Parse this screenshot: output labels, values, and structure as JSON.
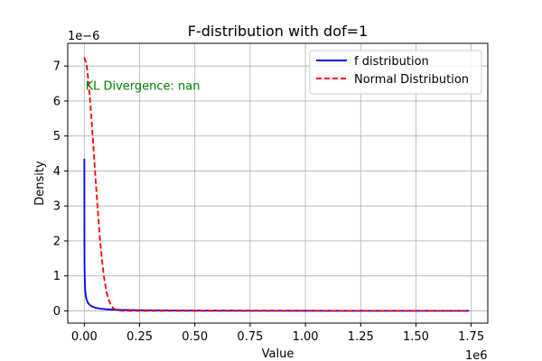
{
  "chart_data": {
    "type": "line",
    "title": "F-distribution with dof=1",
    "xlabel": "Value",
    "ylabel": "Density",
    "x_offset_label": "1e6",
    "y_offset_label": "1e−6",
    "xlim": [
      -0.075,
      1.825
    ],
    "ylim": [
      -0.35,
      7.65
    ],
    "x_ticks": [
      0.0,
      0.25,
      0.5,
      0.75,
      1.0,
      1.25,
      1.5,
      1.75
    ],
    "x_tick_labels": [
      "0.00",
      "0.25",
      "0.50",
      "0.75",
      "1.00",
      "1.25",
      "1.50",
      "1.75"
    ],
    "y_ticks": [
      0,
      1,
      2,
      3,
      4,
      5,
      6,
      7
    ],
    "y_tick_labels": [
      "0",
      "1",
      "2",
      "3",
      "4",
      "5",
      "6",
      "7"
    ],
    "grid": true,
    "legend_position": "top-right",
    "annotation": {
      "text": "KL Divergence: nan",
      "color": "#008000",
      "x": 0.005,
      "y": 6.45
    },
    "series": [
      {
        "name": "f distribution",
        "color": "#0000ff",
        "style": "solid",
        "x": [
          0.0,
          0.0005,
          0.001,
          0.002,
          0.003,
          0.005,
          0.0075,
          0.01,
          0.015,
          0.02,
          0.03,
          0.05,
          0.075,
          0.1,
          0.15,
          0.2,
          0.3,
          0.5,
          0.75,
          1.0,
          1.25,
          1.5,
          1.74
        ],
        "y": [
          4.35,
          1.8,
          1.25,
          0.88,
          0.7,
          0.52,
          0.4,
          0.33,
          0.25,
          0.2,
          0.14,
          0.09,
          0.06,
          0.045,
          0.03,
          0.022,
          0.014,
          0.008,
          0.005,
          0.003,
          0.002,
          0.0015,
          0.001
        ]
      },
      {
        "name": "Normal Distribution",
        "color": "#ff0000",
        "style": "dashed",
        "x": [
          0.0,
          0.01,
          0.02,
          0.03,
          0.04,
          0.05,
          0.06,
          0.07,
          0.08,
          0.09,
          0.1,
          0.11,
          0.12,
          0.13,
          0.14,
          0.15,
          0.16,
          0.18,
          0.2,
          0.3,
          0.5,
          0.75,
          1.0,
          1.25,
          1.5,
          1.74
        ],
        "y": [
          7.25,
          7.05,
          6.5,
          5.7,
          4.8,
          3.85,
          2.95,
          2.1,
          1.45,
          0.92,
          0.55,
          0.32,
          0.17,
          0.08,
          0.04,
          0.018,
          0.008,
          0.0,
          0.0,
          0.0,
          0.0,
          0.0,
          0.0,
          0.0,
          0.0,
          0.0
        ]
      }
    ]
  }
}
